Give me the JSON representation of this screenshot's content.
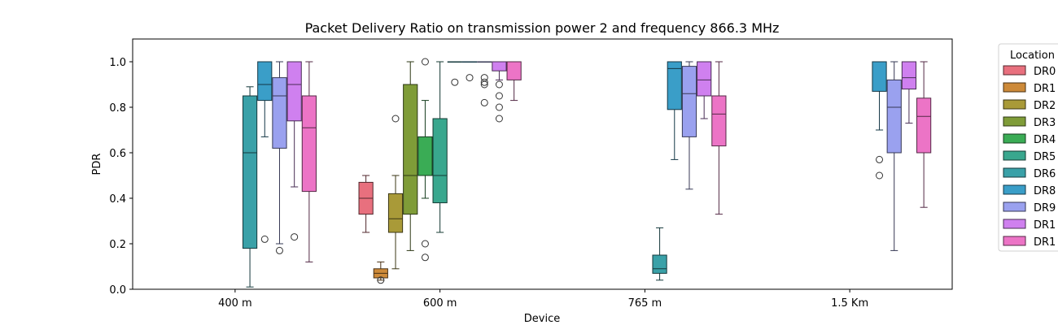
{
  "chart_data": {
    "type": "box",
    "title": "Packet Delivery Ratio on transmission power 2 and frequency 866.3 MHz",
    "xlabel": "Device",
    "ylabel": "PDR",
    "ylim": [
      0,
      1.1
    ],
    "yticks": [
      "0.0",
      "0.2",
      "0.4",
      "0.6",
      "0.8",
      "1.0"
    ],
    "categories": [
      "400 m",
      "600 m",
      "765 m",
      "1.5 Km"
    ],
    "legend": {
      "title": "Location",
      "placement": "outside-right",
      "entries": [
        "DR0",
        "DR1",
        "DR2",
        "DR3",
        "DR4",
        "DR5",
        "DR6",
        "DR8",
        "DR9",
        "DR1",
        "DR1"
      ]
    },
    "series": [
      {
        "legend_index": 0,
        "color": "#e8707e"
      },
      {
        "legend_index": 1,
        "color": "#cd8a39"
      },
      {
        "legend_index": 2,
        "color": "#a99a38"
      },
      {
        "legend_index": 3,
        "color": "#7f9c38"
      },
      {
        "legend_index": 4,
        "color": "#3aac55"
      },
      {
        "legend_index": 5,
        "color": "#39a78e"
      },
      {
        "legend_index": 6,
        "color": "#3aa1a8"
      },
      {
        "legend_index": 7,
        "color": "#3a9ec8"
      },
      {
        "legend_index": 8,
        "color": "#9aa1ef"
      },
      {
        "legend_index": 9,
        "color": "#cf80ef"
      },
      {
        "legend_index": 10,
        "color": "#ec74c6"
      }
    ],
    "boxes": [
      {
        "category": 0,
        "series": 6,
        "whislo": 0.01,
        "q1": 0.18,
        "med": 0.6,
        "q3": 0.85,
        "whishi": 0.89,
        "fliers": []
      },
      {
        "category": 0,
        "series": 7,
        "whislo": 0.67,
        "q1": 0.83,
        "med": 0.9,
        "q3": 1.0,
        "whishi": 1.0,
        "fliers": [
          0.22
        ]
      },
      {
        "category": 0,
        "series": 8,
        "whislo": 0.2,
        "q1": 0.62,
        "med": 0.85,
        "q3": 0.93,
        "whishi": 1.0,
        "fliers": [
          0.17
        ]
      },
      {
        "category": 0,
        "series": 9,
        "whislo": 0.45,
        "q1": 0.74,
        "med": 0.9,
        "q3": 1.0,
        "whishi": 1.0,
        "fliers": [
          0.23
        ]
      },
      {
        "category": 0,
        "series": 10,
        "whislo": 0.12,
        "q1": 0.43,
        "med": 0.71,
        "q3": 0.85,
        "whishi": 1.0,
        "fliers": []
      },
      {
        "category": 1,
        "series": 0,
        "whislo": 0.25,
        "q1": 0.33,
        "med": 0.4,
        "q3": 0.47,
        "whishi": 0.5,
        "fliers": []
      },
      {
        "category": 1,
        "series": 1,
        "whislo": 0.04,
        "q1": 0.05,
        "med": 0.07,
        "q3": 0.09,
        "whishi": 0.12,
        "fliers": [
          0.04
        ]
      },
      {
        "category": 1,
        "series": 2,
        "whislo": 0.09,
        "q1": 0.25,
        "med": 0.31,
        "q3": 0.42,
        "whishi": 0.5,
        "fliers": [
          0.75
        ]
      },
      {
        "category": 1,
        "series": 3,
        "whislo": 0.17,
        "q1": 0.33,
        "med": 0.5,
        "q3": 0.9,
        "whishi": 1.0,
        "fliers": []
      },
      {
        "category": 1,
        "series": 4,
        "whislo": 0.4,
        "q1": 0.5,
        "med": 0.5,
        "q3": 0.67,
        "whishi": 0.83,
        "fliers": [
          0.2,
          0.14,
          1.0
        ]
      },
      {
        "category": 1,
        "series": 5,
        "whislo": 0.25,
        "q1": 0.38,
        "med": 0.5,
        "q3": 0.75,
        "whishi": 1.0,
        "fliers": []
      },
      {
        "category": 1,
        "series": 6,
        "whislo": 1.0,
        "q1": 1.0,
        "med": 1.0,
        "q3": 1.0,
        "whishi": 1.0,
        "fliers": [
          0.91
        ]
      },
      {
        "category": 1,
        "series": 7,
        "whislo": 1.0,
        "q1": 1.0,
        "med": 1.0,
        "q3": 1.0,
        "whishi": 1.0,
        "fliers": [
          0.93
        ]
      },
      {
        "category": 1,
        "series": 8,
        "whislo": 1.0,
        "q1": 1.0,
        "med": 1.0,
        "q3": 1.0,
        "whishi": 1.0,
        "fliers": [
          0.93,
          0.91,
          0.9,
          0.82
        ]
      },
      {
        "category": 1,
        "series": 9,
        "whislo": 0.92,
        "q1": 0.96,
        "med": 1.0,
        "q3": 1.0,
        "whishi": 1.0,
        "fliers": [
          0.9,
          0.85,
          0.8,
          0.75
        ]
      },
      {
        "category": 1,
        "series": 10,
        "whislo": 0.83,
        "q1": 0.92,
        "med": 1.0,
        "q3": 1.0,
        "whishi": 1.0,
        "fliers": []
      },
      {
        "category": 2,
        "series": 6,
        "whislo": 0.04,
        "q1": 0.07,
        "med": 0.09,
        "q3": 0.15,
        "whishi": 0.27,
        "fliers": []
      },
      {
        "category": 2,
        "series": 7,
        "whislo": 0.57,
        "q1": 0.79,
        "med": 0.97,
        "q3": 1.0,
        "whishi": 1.0,
        "fliers": []
      },
      {
        "category": 2,
        "series": 8,
        "whislo": 0.44,
        "q1": 0.67,
        "med": 0.86,
        "q3": 0.98,
        "whishi": 1.0,
        "fliers": []
      },
      {
        "category": 2,
        "series": 9,
        "whislo": 0.75,
        "q1": 0.85,
        "med": 0.92,
        "q3": 1.0,
        "whishi": 1.0,
        "fliers": []
      },
      {
        "category": 2,
        "series": 10,
        "whislo": 0.33,
        "q1": 0.63,
        "med": 0.77,
        "q3": 0.85,
        "whishi": 1.0,
        "fliers": []
      },
      {
        "category": 3,
        "series": 7,
        "whislo": 0.7,
        "q1": 0.87,
        "med": 1.0,
        "q3": 1.0,
        "whishi": 1.0,
        "fliers": [
          0.57,
          0.5
        ]
      },
      {
        "category": 3,
        "series": 8,
        "whislo": 0.17,
        "q1": 0.6,
        "med": 0.8,
        "q3": 0.92,
        "whishi": 1.0,
        "fliers": []
      },
      {
        "category": 3,
        "series": 9,
        "whislo": 0.73,
        "q1": 0.88,
        "med": 0.93,
        "q3": 1.0,
        "whishi": 1.0,
        "fliers": []
      },
      {
        "category": 3,
        "series": 10,
        "whislo": 0.36,
        "q1": 0.6,
        "med": 0.76,
        "q3": 0.84,
        "whishi": 1.0,
        "fliers": []
      }
    ]
  }
}
